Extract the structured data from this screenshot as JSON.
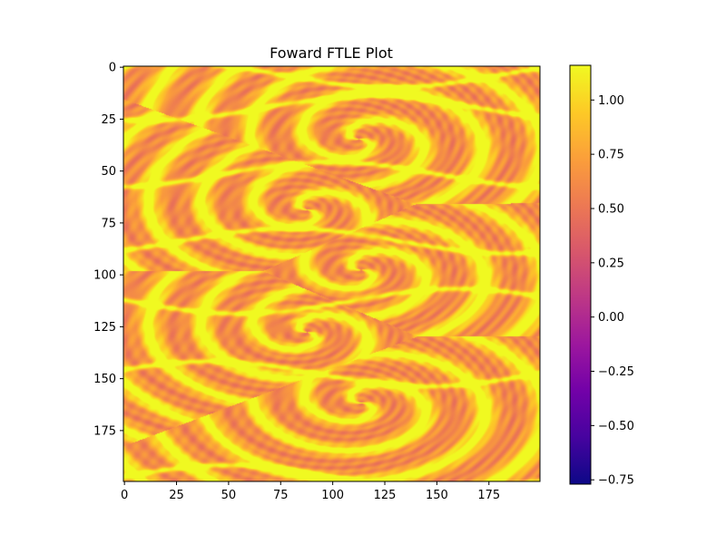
{
  "chart_data": {
    "type": "heatmap",
    "title": "Foward FTLE Plot",
    "xlabel": "",
    "ylabel": "",
    "grid_size": [
      200,
      200
    ],
    "x_range": [
      0,
      199
    ],
    "y_range": [
      0,
      199
    ],
    "y_axis_inverted": true,
    "x_ticks": [
      0,
      25,
      50,
      75,
      100,
      125,
      150,
      175
    ],
    "y_ticks": [
      0,
      25,
      50,
      75,
      100,
      125,
      150,
      175
    ],
    "colormap": "plasma",
    "colorbar": {
      "min": -0.77,
      "max": 1.16,
      "ticks": [
        1.0,
        0.75,
        0.5,
        0.25,
        0.0,
        -0.25,
        -0.5,
        -0.75
      ],
      "tick_labels": [
        "1.00",
        "0.75",
        "0.50",
        "0.25",
        "0.00",
        "−0.25",
        "−0.50",
        "−0.75"
      ]
    },
    "plasma_stops": [
      "#0d0887",
      "#46039f",
      "#7201a8",
      "#9c179e",
      "#bd3786",
      "#d8576b",
      "#ed7953",
      "#fb9f3a",
      "#fdca26",
      "#f0f921"
    ],
    "vortex_centers": [
      {
        "x": 113,
        "y": 35
      },
      {
        "x": 88,
        "y": 69
      },
      {
        "x": 114,
        "y": 98
      },
      {
        "x": 88,
        "y": 128
      },
      {
        "x": 114,
        "y": 162
      }
    ]
  }
}
